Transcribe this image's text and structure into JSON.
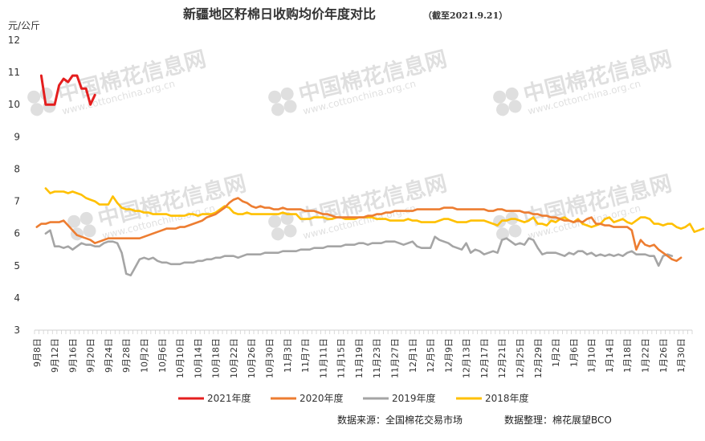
{
  "header": {
    "title": "新疆地区籽棉日收购均价年度对比",
    "subtitle": "（截至2021.9.21）"
  },
  "watermark": {
    "name": "中国棉花信息网",
    "url": "www.cottonchina.org.cn"
  },
  "footer": {
    "source": "数据来源：全国棉花交易市场",
    "compiler": "数据整理：棉花展望BCO"
  },
  "chart_data": {
    "type": "line",
    "ylabel": "元/公斤",
    "ylim": [
      3,
      12
    ],
    "yticks": [
      "3",
      "4",
      "5",
      "6",
      "7",
      "8",
      "9",
      "10",
      "11",
      "12"
    ],
    "x_tick_labels": [
      "9月8日",
      "9月12日",
      "9月16日",
      "9月20日",
      "9月24日",
      "9月28日",
      "10月2日",
      "10月6日",
      "10月10日",
      "10月14日",
      "10月18日",
      "10月22日",
      "10月26日",
      "10月30日",
      "11月3日",
      "11月7日",
      "11月11日",
      "11月15日",
      "11月19日",
      "11月23日",
      "11月27日",
      "12月1日",
      "12月5日",
      "12月9日",
      "12月13日",
      "12月17日",
      "12月21日",
      "12月25日",
      "12月29日",
      "1月2日",
      "1月6日",
      "1月10日",
      "1月14日",
      "1月18日",
      "1月22日",
      "1月26日",
      "1月30日"
    ],
    "x_tick_start": "2020-09-08",
    "x_tick_step_days": 4,
    "x_end": "2021-02-01",
    "grid": false,
    "legend_position": "bottom",
    "series": [
      {
        "name": "2021年度",
        "color": "#e41e1e",
        "start": "2020-09-09",
        "values": [
          10.9,
          10.0,
          10.0,
          10.0,
          10.6,
          10.8,
          10.7,
          10.9,
          10.9,
          10.5,
          10.5,
          10.0,
          10.3
        ]
      },
      {
        "name": "2020年度",
        "color": "#ed7d31",
        "start": "2020-09-08",
        "values": [
          6.2,
          6.3,
          6.3,
          6.35,
          6.35,
          6.35,
          6.4,
          6.25,
          6.1,
          5.95,
          5.9,
          5.85,
          5.8,
          5.7,
          5.75,
          5.8,
          5.85,
          5.85,
          5.85,
          5.85,
          5.85,
          5.85,
          5.85,
          5.85,
          5.9,
          5.95,
          6.0,
          6.05,
          6.1,
          6.15,
          6.15,
          6.15,
          6.2,
          6.2,
          6.25,
          6.3,
          6.35,
          6.4,
          6.5,
          6.55,
          6.6,
          6.7,
          6.8,
          6.95,
          7.05,
          7.1,
          7.0,
          6.95,
          6.85,
          6.8,
          6.85,
          6.8,
          6.8,
          6.75,
          6.75,
          6.8,
          6.75,
          6.75,
          6.75,
          6.75,
          6.7,
          6.7,
          6.7,
          6.65,
          6.6,
          6.6,
          6.55,
          6.5,
          6.5,
          6.5,
          6.5,
          6.5,
          6.5,
          6.5,
          6.55,
          6.55,
          6.6,
          6.6,
          6.65,
          6.65,
          6.7,
          6.7,
          6.7,
          6.7,
          6.7,
          6.75,
          6.75,
          6.75,
          6.75,
          6.75,
          6.75,
          6.8,
          6.8,
          6.8,
          6.75,
          6.75,
          6.75,
          6.75,
          6.75,
          6.75,
          6.75,
          6.7,
          6.7,
          6.75,
          6.75,
          6.7,
          6.7,
          6.7,
          6.7,
          6.65,
          6.65,
          6.6,
          6.6,
          6.55,
          6.55,
          6.5,
          6.5,
          6.45,
          6.4,
          6.4,
          6.35,
          6.4,
          6.35,
          6.45,
          6.5,
          6.3,
          6.3,
          6.25,
          6.25,
          6.2,
          6.2,
          6.2,
          6.2,
          6.1,
          5.5,
          5.8,
          5.65,
          5.6,
          5.65,
          5.5,
          5.4,
          5.3,
          5.2,
          5.15,
          5.25
        ]
      },
      {
        "name": "2019年度",
        "color": "#a5a5a5",
        "start": "2020-09-10",
        "values": [
          6.0,
          6.1,
          5.6,
          5.6,
          5.55,
          5.6,
          5.5,
          5.6,
          5.7,
          5.65,
          5.65,
          5.6,
          5.6,
          5.7,
          5.75,
          5.75,
          5.7,
          5.4,
          4.75,
          4.7,
          4.95,
          5.2,
          5.25,
          5.2,
          5.25,
          5.15,
          5.1,
          5.1,
          5.05,
          5.05,
          5.05,
          5.1,
          5.1,
          5.1,
          5.15,
          5.15,
          5.2,
          5.2,
          5.25,
          5.25,
          5.3,
          5.3,
          5.3,
          5.25,
          5.3,
          5.35,
          5.35,
          5.35,
          5.35,
          5.4,
          5.4,
          5.4,
          5.4,
          5.45,
          5.45,
          5.45,
          5.45,
          5.5,
          5.5,
          5.5,
          5.55,
          5.55,
          5.55,
          5.6,
          5.6,
          5.6,
          5.6,
          5.65,
          5.65,
          5.65,
          5.7,
          5.7,
          5.65,
          5.7,
          5.7,
          5.7,
          5.75,
          5.75,
          5.75,
          5.7,
          5.65,
          5.7,
          5.75,
          5.6,
          5.55,
          5.55,
          5.55,
          5.9,
          5.8,
          5.75,
          5.7,
          5.6,
          5.55,
          5.5,
          5.7,
          5.4,
          5.5,
          5.45,
          5.35,
          5.4,
          5.45,
          5.4,
          5.8,
          5.85,
          5.75,
          5.65,
          5.7,
          5.65,
          5.85,
          5.8,
          5.55,
          5.35,
          5.4,
          5.4,
          5.4,
          5.35,
          5.3,
          5.4,
          5.35,
          5.45,
          5.45,
          5.35,
          5.4,
          5.3,
          5.35,
          5.3,
          5.35,
          5.3,
          5.35,
          5.3,
          5.4,
          5.45,
          5.35,
          5.35,
          5.35,
          5.3,
          5.3,
          5.0,
          5.3,
          5.35,
          5.3
        ]
      },
      {
        "name": "2018年度",
        "color": "#ffc000",
        "start": "2020-09-10",
        "values": [
          7.4,
          7.25,
          7.3,
          7.3,
          7.3,
          7.25,
          7.3,
          7.25,
          7.2,
          7.1,
          7.05,
          7.0,
          6.9,
          6.9,
          6.9,
          7.15,
          6.95,
          6.8,
          6.75,
          6.75,
          6.7,
          6.7,
          6.65,
          6.65,
          6.6,
          6.6,
          6.6,
          6.6,
          6.55,
          6.55,
          6.55,
          6.55,
          6.6,
          6.6,
          6.55,
          6.6,
          6.6,
          6.6,
          6.65,
          6.75,
          6.85,
          6.8,
          6.65,
          6.6,
          6.6,
          6.65,
          6.6,
          6.6,
          6.6,
          6.6,
          6.6,
          6.6,
          6.6,
          6.65,
          6.6,
          6.6,
          6.6,
          6.45,
          6.45,
          6.45,
          6.5,
          6.5,
          6.5,
          6.45,
          6.45,
          6.5,
          6.5,
          6.45,
          6.45,
          6.45,
          6.5,
          6.5,
          6.5,
          6.5,
          6.45,
          6.45,
          6.45,
          6.4,
          6.4,
          6.4,
          6.4,
          6.45,
          6.4,
          6.4,
          6.35,
          6.35,
          6.35,
          6.35,
          6.4,
          6.45,
          6.45,
          6.4,
          6.35,
          6.35,
          6.35,
          6.4,
          6.4,
          6.4,
          6.4,
          6.35,
          6.3,
          6.25,
          6.4,
          6.4,
          6.45,
          6.45,
          6.4,
          6.35,
          6.4,
          6.5,
          6.3,
          6.3,
          6.25,
          6.4,
          6.35,
          6.45,
          6.5,
          6.4,
          6.35,
          6.45,
          6.3,
          6.25,
          6.2,
          6.25,
          6.3,
          6.45,
          6.5,
          6.35,
          6.4,
          6.45,
          6.35,
          6.3,
          6.4,
          6.5,
          6.5,
          6.45,
          6.3,
          6.3,
          6.25,
          6.3,
          6.3,
          6.2,
          6.15,
          6.2,
          6.3,
          6.05,
          6.1,
          6.15
        ]
      }
    ]
  }
}
